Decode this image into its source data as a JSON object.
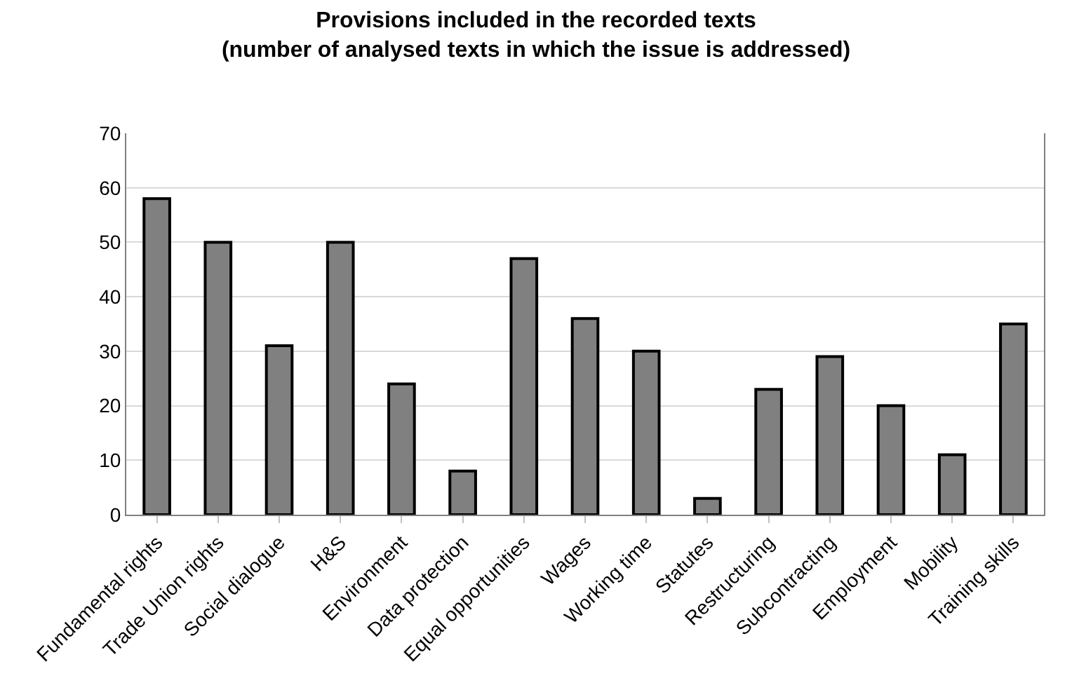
{
  "chart_data": {
    "type": "bar",
    "title": "Provisions included in the recorded texts\n(number of analysed texts in which the issue is addressed)",
    "categories": [
      "Fundamental rights",
      "Trade Union rights",
      "Social dialogue",
      "H&S",
      "Environment",
      "Data protection",
      "Equal opportunities",
      "Wages",
      "Working time",
      "Statutes",
      "Restructuring",
      "Subcontracting",
      "Employment",
      "Mobility",
      "Training skills"
    ],
    "values": [
      58,
      50,
      31,
      50,
      24,
      8,
      47,
      36,
      30,
      3,
      23,
      29,
      20,
      11,
      35
    ],
    "color": "#808080",
    "ylim": [
      0,
      70
    ],
    "yticks": [
      0,
      10,
      20,
      30,
      40,
      50,
      60,
      70
    ],
    "grid": "y"
  }
}
